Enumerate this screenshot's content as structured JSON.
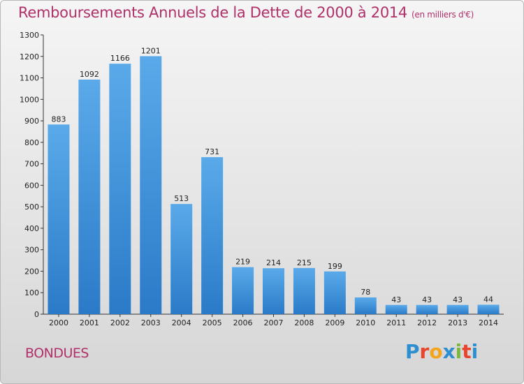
{
  "header": {
    "title": "Remboursements Annuels de la Dette de 2000 à 2014",
    "unit": "(en milliers d'€)"
  },
  "footer": {
    "commune": "BONDUES",
    "logo_letters": [
      "P",
      "r",
      "o",
      "x",
      "i",
      "t",
      "i"
    ]
  },
  "colors": {
    "title": "#b0306a",
    "bar_light": "#5aaaea",
    "bar_dark": "#2a7ac8",
    "logo": [
      "#2d8fd0",
      "#e8452c",
      "#f2a51d",
      "#2d8fd0",
      "#7cb83e",
      "#e8452c",
      "#2d8fd0"
    ]
  },
  "chart_data": {
    "type": "bar",
    "title": "Remboursements Annuels de la Dette de 2000 à 2014",
    "categories": [
      "2000",
      "2001",
      "2002",
      "2003",
      "2004",
      "2005",
      "2006",
      "2007",
      "2008",
      "2009",
      "2010",
      "2011",
      "2012",
      "2013",
      "2014"
    ],
    "values": [
      883,
      1092,
      1166,
      1201,
      513,
      731,
      219,
      214,
      215,
      199,
      78,
      43,
      43,
      43,
      44
    ],
    "data_labels": [
      "883",
      "1092",
      "1166",
      "1201",
      "513",
      "731",
      "219",
      "214",
      "215",
      "199",
      "78",
      "43",
      "43",
      "43",
      "44"
    ],
    "yticks": [
      "0",
      "100",
      "200",
      "300",
      "400",
      "500",
      "600",
      "700",
      "800",
      "900",
      "1000",
      "1100",
      "1200",
      "1300"
    ],
    "ylim": [
      0,
      1300
    ],
    "grid": false,
    "legend": false
  }
}
